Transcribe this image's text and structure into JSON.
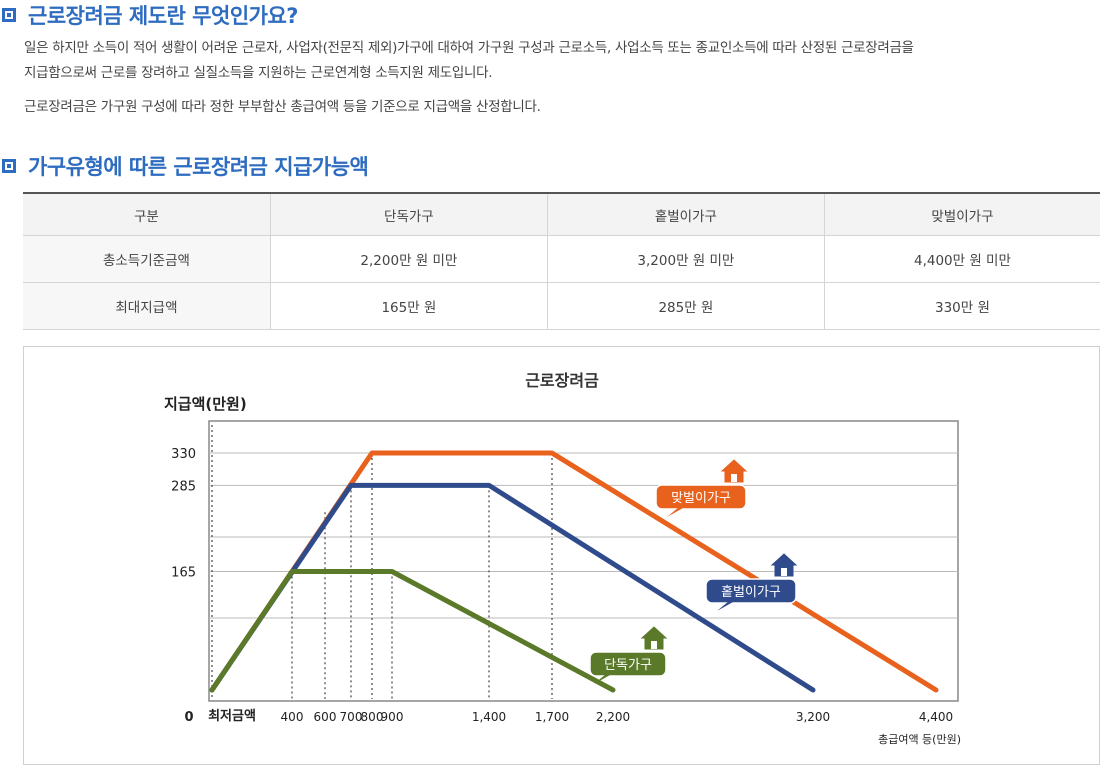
{
  "section1": {
    "title": "근로장려금 제도란 무엇인가요?",
    "para1_line1": "일은 하지만 소득이 적어 생활이 어려운 근로자, 사업자(전문직 제외)가구에 대하여 가구원 구성과 근로소득, 사업소득 또는 종교인소득에 따라 산정된 근로장려금을",
    "para1_line2": "지급함으로써 근로를 장려하고 실질소득을 지원하는 근로연계형 소득지원 제도입니다.",
    "para2": "근로장려금은 가구원 구성에 따라 정한 부부합산 총급여액 등을 기준으로 지급액을 산정합니다."
  },
  "section2": {
    "title": "가구유형에 따른 근로장려금 지급가능액",
    "table": {
      "headers": [
        "구분",
        "단독가구",
        "홑벌이가구",
        "맞벌이가구"
      ],
      "rows": [
        [
          "총소득기준금액",
          "2,200만 원 미만",
          "3,200만 원 미만",
          "4,400만 원 미만"
        ],
        [
          "최대지급액",
          "165만 원",
          "285만 원",
          "330만 원"
        ]
      ]
    }
  },
  "chart_data": {
    "type": "line",
    "title": "근로장려금",
    "ylabel": "지급액(만원)",
    "xlabel": "총급여액 등(만원)",
    "x_origin_label": "0",
    "x_min_label": "최저금액",
    "xticks": [
      "400",
      "600",
      "700",
      "800",
      "900",
      "1,400",
      "1,700",
      "2,200",
      "3,200",
      "4,400"
    ],
    "yticks": [
      "165",
      "285",
      "330"
    ],
    "grid": true,
    "series": [
      {
        "name": "맞벌이가구",
        "color": "#e8621e",
        "points": [
          [
            0,
            0
          ],
          [
            800,
            330
          ],
          [
            1700,
            330
          ],
          [
            4400,
            0
          ]
        ]
      },
      {
        "name": "홑벌이가구",
        "color": "#2f4b8c",
        "points": [
          [
            0,
            0
          ],
          [
            700,
            285
          ],
          [
            1400,
            285
          ],
          [
            3200,
            0
          ]
        ]
      },
      {
        "name": "단독가구",
        "color": "#5a7a2a",
        "points": [
          [
            0,
            0
          ],
          [
            400,
            165
          ],
          [
            900,
            165
          ],
          [
            2200,
            0
          ]
        ]
      }
    ]
  }
}
